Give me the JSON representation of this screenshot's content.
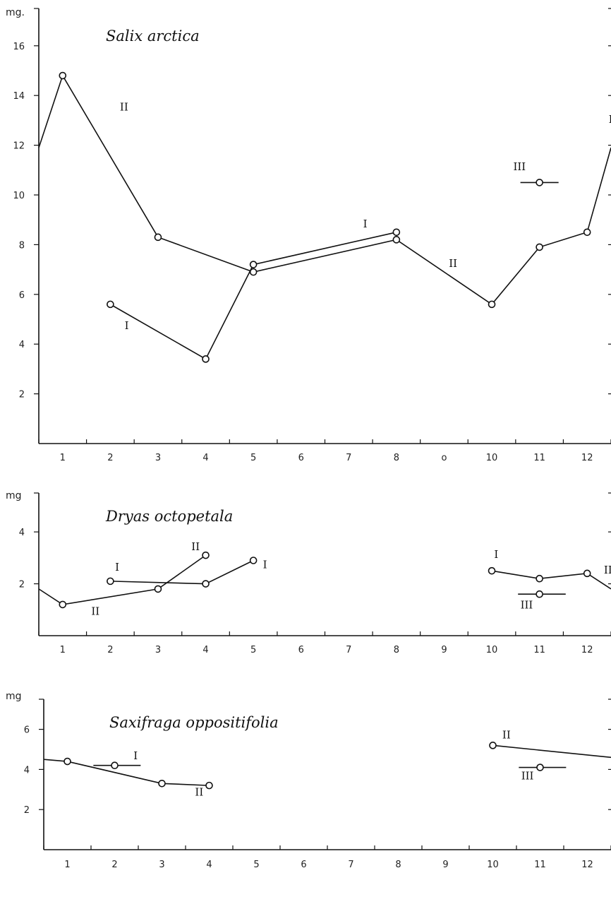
{
  "chart_data": [
    {
      "type": "line",
      "title": "Salix arctica",
      "ylabel": "mg.",
      "xlabel": "",
      "categories": [
        "1",
        "2",
        "3",
        "4",
        "5",
        "6",
        "7",
        "8",
        "o",
        "10",
        "11",
        "12"
      ],
      "yticks": [
        "2",
        "4",
        "6",
        "8",
        "10",
        "12",
        "14",
        "16"
      ],
      "xlim": [
        0.5,
        12.5
      ],
      "ylim": [
        0,
        17.5
      ],
      "series": [
        {
          "name": "II",
          "points": [
            [
              0.5,
              11.9
            ],
            [
              1,
              14.8
            ],
            [
              3,
              8.3
            ],
            [
              5,
              6.9
            ],
            [
              8,
              8.2
            ],
            [
              10,
              5.6
            ],
            [
              11,
              7.9
            ],
            [
              12,
              8.5
            ],
            [
              12.5,
              11.9
            ]
          ],
          "marked": [
            1,
            2,
            3,
            4,
            5,
            6,
            7
          ]
        },
        {
          "name": "I",
          "points": [
            [
              2,
              5.6
            ],
            [
              4,
              3.4
            ],
            [
              5,
              7.2
            ],
            [
              8,
              8.5
            ]
          ],
          "marked": [
            0,
            1,
            2,
            3
          ]
        },
        {
          "name": "III",
          "points": [
            [
              10.6,
              10.5
            ],
            [
              11,
              10.5
            ],
            [
              11.4,
              10.5
            ]
          ],
          "marked": [
            1
          ]
        }
      ],
      "labels": [
        {
          "text": "II",
          "x": 2.2,
          "y": 13.4
        },
        {
          "text": "I",
          "x": 2.3,
          "y": 4.6
        },
        {
          "text": "I",
          "x": 7.3,
          "y": 8.7
        },
        {
          "text": "II",
          "x": 9.1,
          "y": 7.1
        },
        {
          "text": "III",
          "x": 10.45,
          "y": 11.0
        },
        {
          "text": "II",
          "x": 12.45,
          "y": 12.9
        }
      ]
    },
    {
      "type": "line",
      "title": "Dryas octopetala",
      "ylabel": "mg",
      "xlabel": "",
      "categories": [
        "1",
        "2",
        "3",
        "4",
        "5",
        "6",
        "7",
        "8",
        "9",
        "10",
        "11",
        "12"
      ],
      "yticks": [
        "2",
        "4"
      ],
      "xlim": [
        0.5,
        12.5
      ],
      "ylim": [
        0,
        5.5
      ],
      "series": [
        {
          "name": "II",
          "points": [
            [
              0.5,
              1.8
            ],
            [
              1,
              1.2
            ],
            [
              3,
              1.8
            ],
            [
              4,
              3.1
            ]
          ],
          "marked": [
            1,
            2,
            3
          ]
        },
        {
          "name": "I",
          "points": [
            [
              2,
              2.1
            ],
            [
              4,
              2.0
            ],
            [
              5,
              2.9
            ]
          ],
          "marked": [
            0,
            1,
            2
          ]
        },
        {
          "name": "I",
          "points": [
            [
              10,
              2.5
            ],
            [
              11,
              2.2
            ],
            [
              12,
              2.4
            ],
            [
              12.5,
              1.8
            ]
          ],
          "marked": [
            0,
            1,
            2
          ]
        },
        {
          "name": "III",
          "points": [
            [
              10.55,
              1.6
            ],
            [
              11,
              1.6
            ],
            [
              11.55,
              1.6
            ]
          ],
          "marked": [
            1
          ]
        }
      ],
      "labels": [
        {
          "text": "I",
          "x": 2.1,
          "y": 2.5
        },
        {
          "text": "II",
          "x": 1.6,
          "y": 0.8
        },
        {
          "text": "II",
          "x": 3.7,
          "y": 3.3
        },
        {
          "text": "I",
          "x": 5.2,
          "y": 2.6
        },
        {
          "text": "I",
          "x": 10.05,
          "y": 3.0
        },
        {
          "text": "III",
          "x": 10.6,
          "y": 1.05
        },
        {
          "text": "II",
          "x": 12.35,
          "y": 2.4
        }
      ]
    },
    {
      "type": "line",
      "title": "Saxifraga oppositifolia",
      "ylabel": "mg",
      "xlabel": "",
      "categories": [
        "1",
        "2",
        "3",
        "4",
        "5",
        "6",
        "7",
        "8",
        "9",
        "10",
        "11",
        "12"
      ],
      "yticks": [
        "2",
        "4",
        "6"
      ],
      "xlim": [
        0.5,
        12.5
      ],
      "ylim": [
        0,
        7.5
      ],
      "series": [
        {
          "name": "II",
          "points": [
            [
              0.5,
              4.5
            ],
            [
              1,
              4.4
            ],
            [
              3,
              3.3
            ],
            [
              4,
              3.2
            ]
          ],
          "marked": [
            1,
            2,
            3
          ]
        },
        {
          "name": "I",
          "points": [
            [
              1.55,
              4.2
            ],
            [
              2,
              4.2
            ],
            [
              2.55,
              4.2
            ]
          ],
          "marked": [
            1
          ]
        },
        {
          "name": "II",
          "points": [
            [
              10,
              5.2
            ],
            [
              12.5,
              4.6
            ]
          ],
          "marked": [
            0
          ]
        },
        {
          "name": "III",
          "points": [
            [
              10.55,
              4.1
            ],
            [
              11,
              4.1
            ],
            [
              11.55,
              4.1
            ]
          ],
          "marked": [
            1
          ]
        }
      ],
      "labels": [
        {
          "text": "I",
          "x": 2.4,
          "y": 4.5
        },
        {
          "text": "II",
          "x": 3.7,
          "y": 2.7
        },
        {
          "text": "II",
          "x": 10.2,
          "y": 5.55
        },
        {
          "text": "III",
          "x": 10.6,
          "y": 3.5
        }
      ]
    }
  ]
}
